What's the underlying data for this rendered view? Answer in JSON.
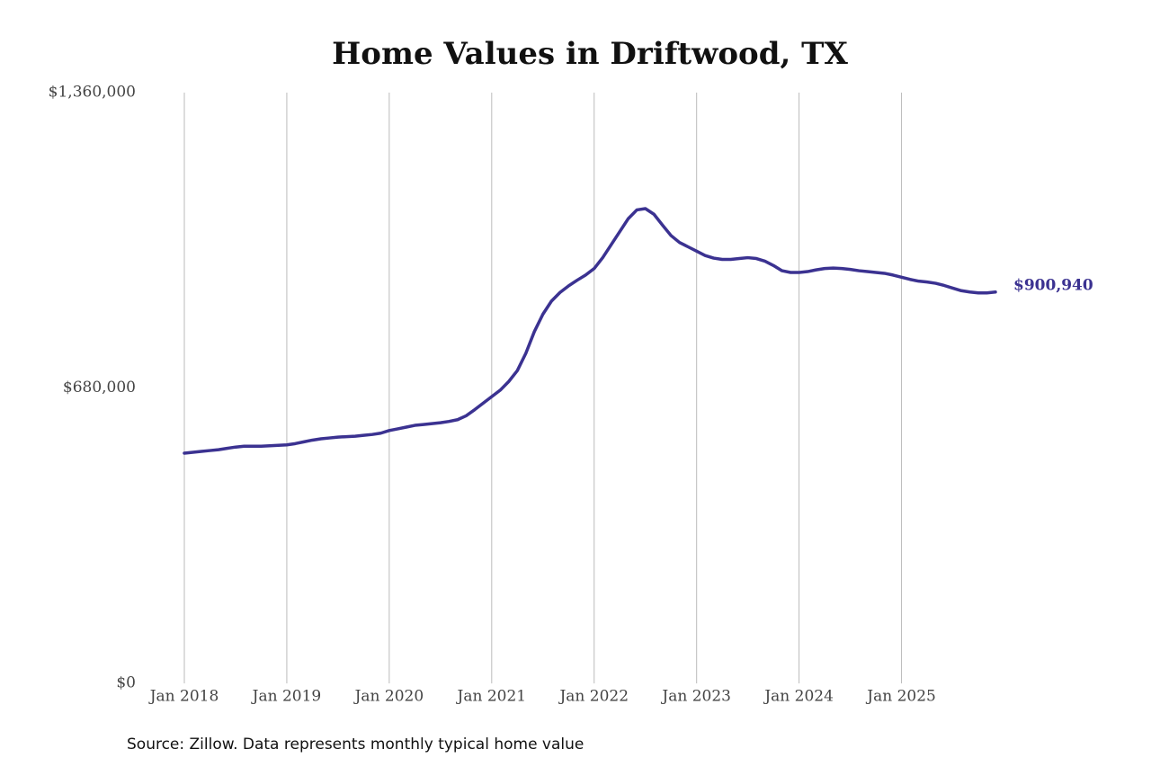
{
  "chart_data": {
    "type": "line",
    "title": "Home Values in Driftwood, TX",
    "source": "Source: Zillow. Data represents monthly typical home value",
    "x": [
      "2018-01",
      "2018-02",
      "2018-03",
      "2018-04",
      "2018-05",
      "2018-06",
      "2018-07",
      "2018-08",
      "2018-09",
      "2018-10",
      "2018-11",
      "2018-12",
      "2019-01",
      "2019-02",
      "2019-03",
      "2019-04",
      "2019-05",
      "2019-06",
      "2019-07",
      "2019-08",
      "2019-09",
      "2019-10",
      "2019-11",
      "2019-12",
      "2020-01",
      "2020-02",
      "2020-03",
      "2020-04",
      "2020-05",
      "2020-06",
      "2020-07",
      "2020-08",
      "2020-09",
      "2020-10",
      "2020-11",
      "2020-12",
      "2021-01",
      "2021-02",
      "2021-03",
      "2021-04",
      "2021-05",
      "2021-06",
      "2021-07",
      "2021-08",
      "2021-09",
      "2021-10",
      "2021-11",
      "2021-12",
      "2022-01",
      "2022-02",
      "2022-03",
      "2022-04",
      "2022-05",
      "2022-06",
      "2022-07",
      "2022-08",
      "2022-09",
      "2022-10",
      "2022-11",
      "2022-12",
      "2023-01",
      "2023-02",
      "2023-03",
      "2023-04",
      "2023-05",
      "2023-06",
      "2023-07",
      "2023-08",
      "2023-09",
      "2023-10",
      "2023-11",
      "2023-12",
      "2024-01",
      "2024-02",
      "2024-03",
      "2024-04",
      "2024-05",
      "2024-06",
      "2024-07",
      "2024-08",
      "2024-09",
      "2024-10",
      "2024-11",
      "2024-12",
      "2025-01",
      "2025-02",
      "2025-03",
      "2025-04",
      "2025-05",
      "2025-06",
      "2025-07",
      "2025-08",
      "2025-09",
      "2025-10",
      "2025-11",
      "2025-12"
    ],
    "values": [
      530000,
      532000,
      534000,
      536000,
      538000,
      541000,
      544000,
      546000,
      546000,
      546000,
      547000,
      548000,
      549000,
      552000,
      556000,
      560000,
      563000,
      565000,
      567000,
      568000,
      569000,
      571000,
      573000,
      576000,
      582000,
      586000,
      590000,
      594000,
      596000,
      598000,
      600000,
      603000,
      607000,
      616000,
      630000,
      645000,
      660000,
      675000,
      695000,
      720000,
      760000,
      810000,
      850000,
      880000,
      900000,
      915000,
      928000,
      940000,
      955000,
      980000,
      1010000,
      1040000,
      1070000,
      1090000,
      1093000,
      1080000,
      1055000,
      1031000,
      1015000,
      1005000,
      995000,
      985000,
      979000,
      976000,
      976000,
      978000,
      980000,
      978000,
      972000,
      962000,
      950000,
      946000,
      946000,
      948000,
      952000,
      955000,
      956000,
      955000,
      953000,
      950000,
      948000,
      946000,
      944000,
      940000,
      935000,
      930000,
      926000,
      924000,
      921000,
      916000,
      910000,
      904000,
      901000,
      899000,
      899000,
      900940
    ],
    "value_labels": [
      null,
      null,
      null,
      null,
      null,
      null,
      null,
      null,
      null,
      null,
      null,
      null,
      null,
      null,
      null,
      null,
      null,
      null,
      null,
      null,
      null,
      null,
      null,
      null,
      null,
      null,
      null,
      null,
      null,
      null,
      null,
      null,
      null,
      null,
      null,
      null,
      null,
      null,
      null,
      null,
      null,
      null,
      null,
      null,
      null,
      null,
      null,
      null,
      null,
      null,
      null,
      null,
      null,
      null,
      null,
      null,
      null,
      null,
      null,
      null,
      null,
      null,
      null,
      null,
      null,
      null,
      null,
      null,
      null,
      null,
      null,
      null,
      null,
      null,
      null,
      null,
      null,
      null,
      null,
      null,
      null,
      null,
      null,
      null,
      null,
      null,
      null,
      null,
      null,
      null,
      null,
      null,
      null,
      null,
      null,
      "$900,940"
    ],
    "color": "#3b3291",
    "xlim": [
      "2018-01",
      "2025-12"
    ],
    "xticks": [
      {
        "value": "2018-01",
        "label": "Jan 2018"
      },
      {
        "value": "2019-01",
        "label": "Jan 2019"
      },
      {
        "value": "2020-01",
        "label": "Jan 2020"
      },
      {
        "value": "2021-01",
        "label": "Jan 2021"
      },
      {
        "value": "2022-01",
        "label": "Jan 2022"
      },
      {
        "value": "2023-01",
        "label": "Jan 2023"
      },
      {
        "value": "2024-01",
        "label": "Jan 2024"
      },
      {
        "value": "2025-01",
        "label": "Jan 2025"
      }
    ],
    "ylim": [
      0,
      1360000
    ],
    "yticks": [
      {
        "value": 0,
        "label": "$0"
      },
      {
        "value": 680000,
        "label": "$680,000"
      },
      {
        "value": 1360000,
        "label": "$1,360,000"
      }
    ],
    "grid": "x"
  }
}
